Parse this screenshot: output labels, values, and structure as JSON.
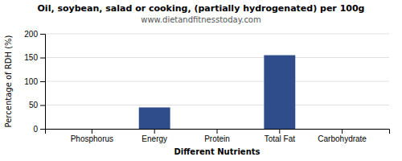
{
  "chart_data": {
    "type": "bar",
    "title": "Oil, soybean, salad or cooking, (partially hydrogenated) per 100g",
    "subtitle": "www.dietandfitnesstoday.com",
    "xlabel": "Different Nutrients",
    "ylabel": "Percentage of RDH (%)",
    "categories": [
      "Phosphorus",
      "Energy",
      "Protein",
      "Total Fat",
      "Carbohydrate"
    ],
    "values": [
      0,
      45,
      0,
      155,
      0
    ],
    "color": "#2e4d8a",
    "ylim": [
      0,
      200
    ],
    "yticks": [
      0,
      50,
      100,
      150,
      200
    ],
    "grid": true
  }
}
